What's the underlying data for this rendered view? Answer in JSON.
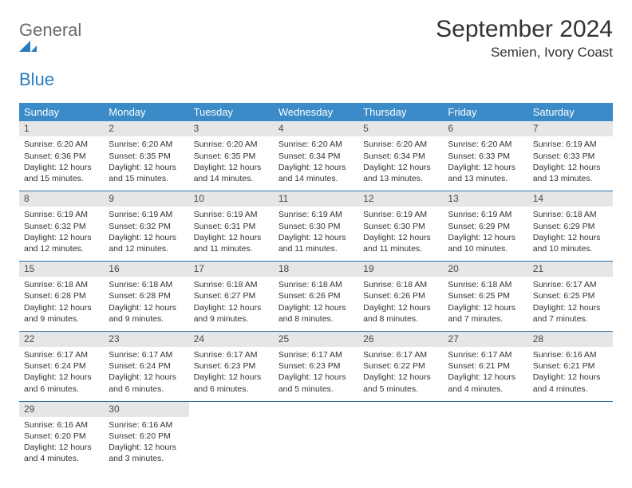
{
  "brand": {
    "line1": "General",
    "line2": "Blue"
  },
  "title": "September 2024",
  "location": "Semien, Ivory Coast",
  "colors": {
    "header_bg": "#3b8bc8",
    "header_text": "#ffffff",
    "daynum_bg": "#e6e6e6",
    "week_border": "#2f6fa3",
    "logo_blue": "#2b7bbf"
  },
  "day_labels": [
    "Sunday",
    "Monday",
    "Tuesday",
    "Wednesday",
    "Thursday",
    "Friday",
    "Saturday"
  ],
  "weeks": [
    [
      {
        "n": "1",
        "sr": "Sunrise: 6:20 AM",
        "ss": "Sunset: 6:36 PM",
        "dl": "Daylight: 12 hours and 15 minutes."
      },
      {
        "n": "2",
        "sr": "Sunrise: 6:20 AM",
        "ss": "Sunset: 6:35 PM",
        "dl": "Daylight: 12 hours and 15 minutes."
      },
      {
        "n": "3",
        "sr": "Sunrise: 6:20 AM",
        "ss": "Sunset: 6:35 PM",
        "dl": "Daylight: 12 hours and 14 minutes."
      },
      {
        "n": "4",
        "sr": "Sunrise: 6:20 AM",
        "ss": "Sunset: 6:34 PM",
        "dl": "Daylight: 12 hours and 14 minutes."
      },
      {
        "n": "5",
        "sr": "Sunrise: 6:20 AM",
        "ss": "Sunset: 6:34 PM",
        "dl": "Daylight: 12 hours and 13 minutes."
      },
      {
        "n": "6",
        "sr": "Sunrise: 6:20 AM",
        "ss": "Sunset: 6:33 PM",
        "dl": "Daylight: 12 hours and 13 minutes."
      },
      {
        "n": "7",
        "sr": "Sunrise: 6:19 AM",
        "ss": "Sunset: 6:33 PM",
        "dl": "Daylight: 12 hours and 13 minutes."
      }
    ],
    [
      {
        "n": "8",
        "sr": "Sunrise: 6:19 AM",
        "ss": "Sunset: 6:32 PM",
        "dl": "Daylight: 12 hours and 12 minutes."
      },
      {
        "n": "9",
        "sr": "Sunrise: 6:19 AM",
        "ss": "Sunset: 6:32 PM",
        "dl": "Daylight: 12 hours and 12 minutes."
      },
      {
        "n": "10",
        "sr": "Sunrise: 6:19 AM",
        "ss": "Sunset: 6:31 PM",
        "dl": "Daylight: 12 hours and 11 minutes."
      },
      {
        "n": "11",
        "sr": "Sunrise: 6:19 AM",
        "ss": "Sunset: 6:30 PM",
        "dl": "Daylight: 12 hours and 11 minutes."
      },
      {
        "n": "12",
        "sr": "Sunrise: 6:19 AM",
        "ss": "Sunset: 6:30 PM",
        "dl": "Daylight: 12 hours and 11 minutes."
      },
      {
        "n": "13",
        "sr": "Sunrise: 6:19 AM",
        "ss": "Sunset: 6:29 PM",
        "dl": "Daylight: 12 hours and 10 minutes."
      },
      {
        "n": "14",
        "sr": "Sunrise: 6:18 AM",
        "ss": "Sunset: 6:29 PM",
        "dl": "Daylight: 12 hours and 10 minutes."
      }
    ],
    [
      {
        "n": "15",
        "sr": "Sunrise: 6:18 AM",
        "ss": "Sunset: 6:28 PM",
        "dl": "Daylight: 12 hours and 9 minutes."
      },
      {
        "n": "16",
        "sr": "Sunrise: 6:18 AM",
        "ss": "Sunset: 6:28 PM",
        "dl": "Daylight: 12 hours and 9 minutes."
      },
      {
        "n": "17",
        "sr": "Sunrise: 6:18 AM",
        "ss": "Sunset: 6:27 PM",
        "dl": "Daylight: 12 hours and 9 minutes."
      },
      {
        "n": "18",
        "sr": "Sunrise: 6:18 AM",
        "ss": "Sunset: 6:26 PM",
        "dl": "Daylight: 12 hours and 8 minutes."
      },
      {
        "n": "19",
        "sr": "Sunrise: 6:18 AM",
        "ss": "Sunset: 6:26 PM",
        "dl": "Daylight: 12 hours and 8 minutes."
      },
      {
        "n": "20",
        "sr": "Sunrise: 6:18 AM",
        "ss": "Sunset: 6:25 PM",
        "dl": "Daylight: 12 hours and 7 minutes."
      },
      {
        "n": "21",
        "sr": "Sunrise: 6:17 AM",
        "ss": "Sunset: 6:25 PM",
        "dl": "Daylight: 12 hours and 7 minutes."
      }
    ],
    [
      {
        "n": "22",
        "sr": "Sunrise: 6:17 AM",
        "ss": "Sunset: 6:24 PM",
        "dl": "Daylight: 12 hours and 6 minutes."
      },
      {
        "n": "23",
        "sr": "Sunrise: 6:17 AM",
        "ss": "Sunset: 6:24 PM",
        "dl": "Daylight: 12 hours and 6 minutes."
      },
      {
        "n": "24",
        "sr": "Sunrise: 6:17 AM",
        "ss": "Sunset: 6:23 PM",
        "dl": "Daylight: 12 hours and 6 minutes."
      },
      {
        "n": "25",
        "sr": "Sunrise: 6:17 AM",
        "ss": "Sunset: 6:23 PM",
        "dl": "Daylight: 12 hours and 5 minutes."
      },
      {
        "n": "26",
        "sr": "Sunrise: 6:17 AM",
        "ss": "Sunset: 6:22 PM",
        "dl": "Daylight: 12 hours and 5 minutes."
      },
      {
        "n": "27",
        "sr": "Sunrise: 6:17 AM",
        "ss": "Sunset: 6:21 PM",
        "dl": "Daylight: 12 hours and 4 minutes."
      },
      {
        "n": "28",
        "sr": "Sunrise: 6:16 AM",
        "ss": "Sunset: 6:21 PM",
        "dl": "Daylight: 12 hours and 4 minutes."
      }
    ],
    [
      {
        "n": "29",
        "sr": "Sunrise: 6:16 AM",
        "ss": "Sunset: 6:20 PM",
        "dl": "Daylight: 12 hours and 4 minutes."
      },
      {
        "n": "30",
        "sr": "Sunrise: 6:16 AM",
        "ss": "Sunset: 6:20 PM",
        "dl": "Daylight: 12 hours and 3 minutes."
      },
      {
        "n": "",
        "sr": "",
        "ss": "",
        "dl": ""
      },
      {
        "n": "",
        "sr": "",
        "ss": "",
        "dl": ""
      },
      {
        "n": "",
        "sr": "",
        "ss": "",
        "dl": ""
      },
      {
        "n": "",
        "sr": "",
        "ss": "",
        "dl": ""
      },
      {
        "n": "",
        "sr": "",
        "ss": "",
        "dl": ""
      }
    ]
  ]
}
